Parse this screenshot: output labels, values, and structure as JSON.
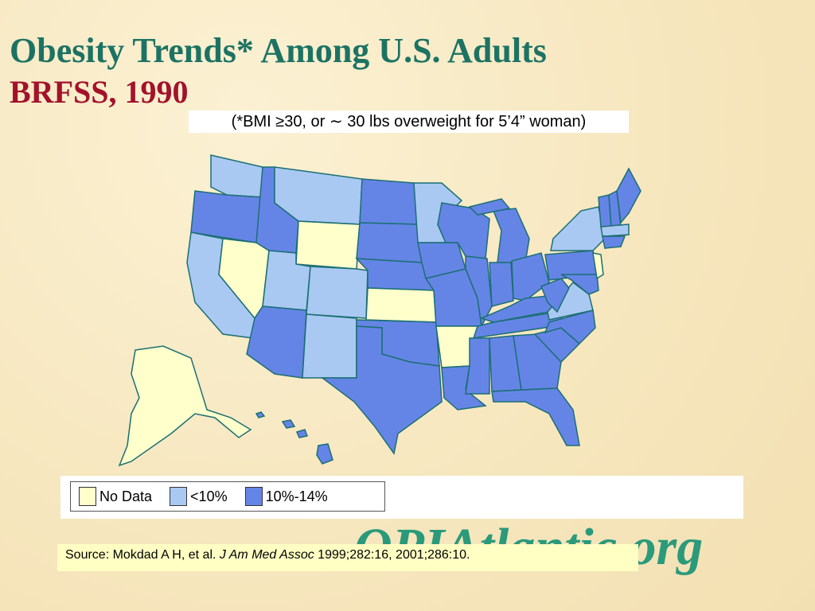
{
  "header": {
    "title": "Obesity Trends* Among U.S. Adults",
    "subtitle": "BRFSS, 1990",
    "note": "(*BMI ≥30, or ∼ 30 lbs overweight for 5’4” woman)"
  },
  "legend": [
    {
      "label": "No Data",
      "color": "#ffffcc"
    },
    {
      "label": "<10%",
      "color": "#a9c9f2"
    },
    {
      "label": "10%-14%",
      "color": "#6585e6"
    }
  ],
  "source": {
    "prefix": "Source: Mokdad A H, et al. ",
    "journal": "J Am Med Assoc",
    "suffix": " 1999;282:16, 2001;286:10."
  },
  "logo": "OPIAtlantic.org"
}
